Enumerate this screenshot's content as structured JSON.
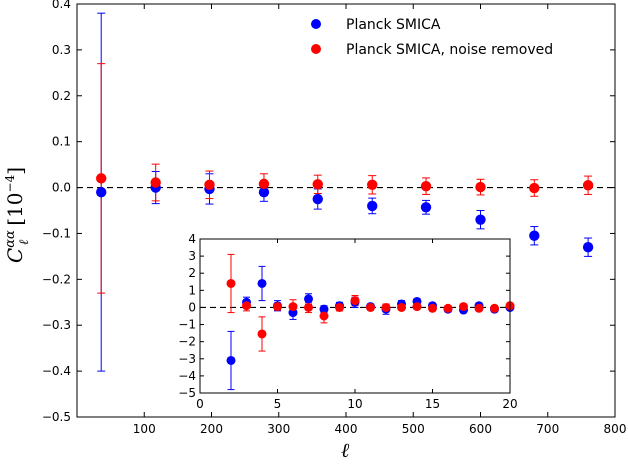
{
  "chart_data": [
    {
      "type": "scatter",
      "xlabel": "ℓ",
      "ylabel": "C_ℓ^{αα}  [10^{-4}]",
      "xlim": [
        0,
        800
      ],
      "ylim": [
        -0.5,
        0.4
      ],
      "xticks": [
        "100",
        "200",
        "300",
        "400",
        "500",
        "600",
        "700",
        "800"
      ],
      "yticks": [
        "−0.5",
        "−0.4",
        "−0.3",
        "−0.2",
        "−0.1",
        "0.0",
        "0.1",
        "0.2",
        "0.3",
        "0.4"
      ],
      "reference_line": {
        "y": 0,
        "style": "dashed"
      },
      "legend_position": "top-right",
      "series": [
        {
          "name": "Planck SMICA",
          "color": "#0000ff",
          "x": [
            36,
            117,
            197,
            278,
            358,
            439,
            519,
            600,
            680,
            760
          ],
          "y": [
            -0.01,
            0.0,
            -0.003,
            -0.01,
            -0.025,
            -0.04,
            -0.043,
            -0.07,
            -0.105,
            -0.13
          ],
          "err": [
            0.39,
            0.035,
            0.033,
            0.02,
            0.022,
            0.017,
            0.015,
            0.02,
            0.02,
            0.02
          ]
        },
        {
          "name": "Planck SMICA, noise removed",
          "color": "#ff0000",
          "x": [
            36,
            117,
            197,
            278,
            358,
            439,
            519,
            600,
            680,
            760
          ],
          "y": [
            0.02,
            0.011,
            0.006,
            0.008,
            0.007,
            0.006,
            0.003,
            0.001,
            -0.001,
            0.005
          ],
          "err": [
            0.25,
            0.04,
            0.03,
            0.022,
            0.02,
            0.02,
            0.018,
            0.017,
            0.018,
            0.02
          ]
        }
      ]
    },
    {
      "type": "scatter",
      "xlim": [
        0,
        20
      ],
      "ylim": [
        -5,
        4
      ],
      "xticks": [
        "0",
        "5",
        "10",
        "15",
        "20"
      ],
      "yticks": [
        "−5",
        "−4",
        "−3",
        "−2",
        "−1",
        "0",
        "1",
        "2",
        "3",
        "4"
      ],
      "reference_line": {
        "y": 0,
        "style": "dashed"
      },
      "series": [
        {
          "name": "Planck SMICA",
          "color": "#0000ff",
          "x": [
            2,
            3,
            4,
            5,
            6,
            7,
            8,
            9,
            10,
            11,
            12,
            13,
            14,
            15,
            16,
            17,
            18,
            19,
            20
          ],
          "y": [
            -3.1,
            0.3,
            1.4,
            0.1,
            -0.3,
            0.5,
            -0.1,
            0.1,
            0.3,
            0.05,
            -0.1,
            0.2,
            0.35,
            0.1,
            -0.1,
            -0.15,
            0.1,
            -0.1,
            0.0
          ],
          "err": [
            1.7,
            0.3,
            1.0,
            0.3,
            0.4,
            0.3,
            0.2,
            0.2,
            0.3,
            0.15,
            0.3,
            0.2,
            0.15,
            0.15,
            0.15,
            0.15,
            0.15,
            0.15,
            0.1
          ]
        },
        {
          "name": "Planck SMICA, noise removed",
          "color": "#ff0000",
          "x": [
            2,
            3,
            4,
            5,
            6,
            7,
            8,
            9,
            10,
            11,
            12,
            13,
            14,
            15,
            16,
            17,
            18,
            19,
            20
          ],
          "y": [
            1.4,
            0.1,
            -1.55,
            0.05,
            0.05,
            0.0,
            -0.5,
            0.0,
            0.4,
            0.0,
            0.0,
            0.0,
            0.05,
            -0.05,
            -0.05,
            0.05,
            -0.05,
            -0.05,
            0.1
          ],
          "err": [
            1.7,
            0.3,
            1.0,
            0.2,
            0.4,
            0.3,
            0.4,
            0.2,
            0.3,
            0.15,
            0.2,
            0.15,
            0.15,
            0.15,
            0.15,
            0.15,
            0.15,
            0.15,
            0.1
          ]
        }
      ]
    }
  ]
}
